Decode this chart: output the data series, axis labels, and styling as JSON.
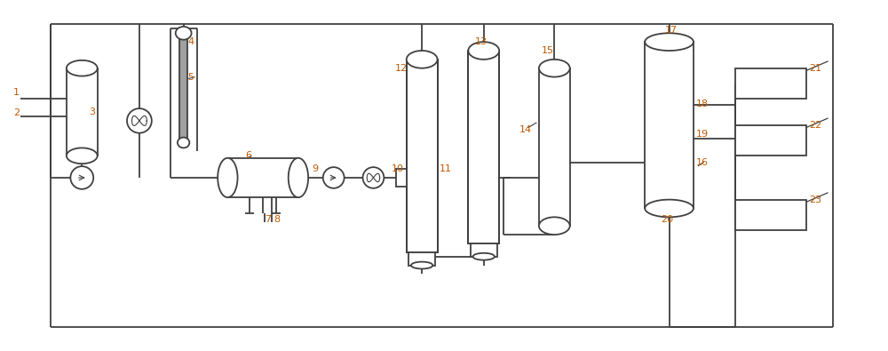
{
  "bg_color": "#ffffff",
  "line_color": "#404040",
  "label_color": "#c05800",
  "gray_color": "#808080",
  "dark_gray": "#606060",
  "fig_width": 10.0,
  "fig_height": 3.95,
  "dpi": 100,
  "xlim": [
    0,
    100
  ],
  "ylim": [
    0,
    39.5
  ]
}
